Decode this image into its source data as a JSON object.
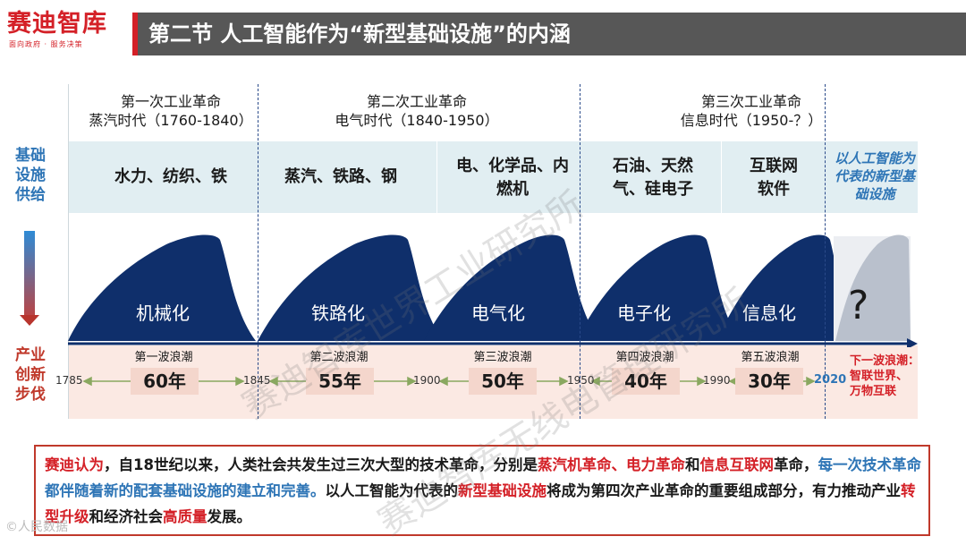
{
  "header": {
    "logo": "赛迪智库",
    "logo_sub": "面向政府 · 服务决策",
    "title": "第二节 人工智能作为“新型基础设施”的内涵"
  },
  "side_labels": {
    "top": "基础设施供给",
    "bottom": "产业创新步伐"
  },
  "eras": [
    {
      "line1": "第一次工业革命",
      "line2": "蒸汽时代（1760-1840）"
    },
    {
      "line1": "第二次工业革命",
      "line2": "电气时代（1840-1950）"
    },
    {
      "line1": "第三次工业革命",
      "line2": "信息时代（1950-？）"
    }
  ],
  "infrastructure": [
    "水力、纺织、铁",
    "蒸汽、铁路、钢",
    "电、化学品、内燃机",
    "石油、天然气、硅电子",
    "互联网软件"
  ],
  "infra_new": "以人工智能为代表的新型基础设施",
  "waves": [
    {
      "label": "机械化",
      "name": "第一波浪潮",
      "duration": "60年"
    },
    {
      "label": "铁路化",
      "name": "第二波浪潮",
      "duration": "55年"
    },
    {
      "label": "电气化",
      "name": "第三波浪潮",
      "duration": "50年"
    },
    {
      "label": "电子化",
      "name": "第四波浪潮",
      "duration": "40年"
    },
    {
      "label": "信息化",
      "name": "第五波浪潮",
      "duration": "30年"
    }
  ],
  "next_wave": {
    "symbol": "?",
    "title": "下一波浪潮：",
    "desc": "智联世界、万物互联"
  },
  "years": [
    "1785",
    "1845",
    "1900",
    "1950",
    "1990",
    "2020"
  ],
  "summary": {
    "p1": "赛迪认为",
    "p2": "，自18世纪以来，人类社会共发生过三次大型的技术革命，分别是",
    "p3": "蒸汽机革命、电力革命",
    "p4": "和",
    "p5": "信息互联网",
    "p6": "革命，",
    "p7": "每一次技术革命都伴随着新的配套基础设施的建立和完善。",
    "p8": "以人工智能为代表的",
    "p9": "新型基础设施",
    "p10": "将成为第四次产业革命的重要组成部分，有力推动产业",
    "p11": "转型升级",
    "p12": "和经济社会",
    "p13": "高质量",
    "p14": "发展。"
  },
  "watermark": {
    "line1": "赛迪智库世界工业研究所",
    "line2": "赛迪智库无线电管理研究所"
  },
  "footer_mark": "©人民数据",
  "colors": {
    "red": "#d42027",
    "blue": "#2e75b6",
    "wave": "#0f2f6b",
    "header_bg": "#575757"
  }
}
